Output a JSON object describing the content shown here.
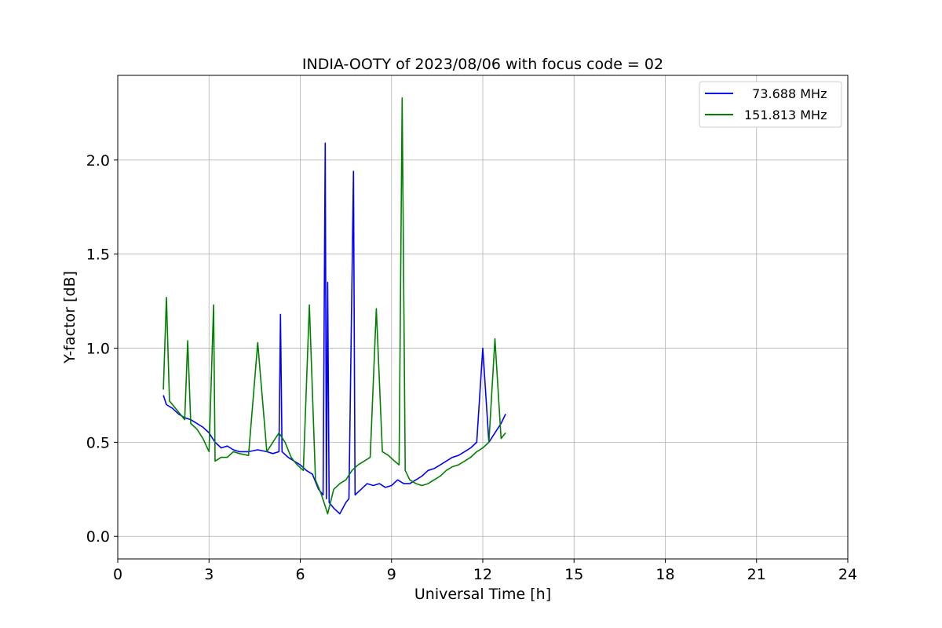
{
  "chart_data": {
    "type": "line",
    "title": "INDIA-OOTY of 2023/08/06 with focus code = 02",
    "xlabel": "Universal Time [h]",
    "ylabel": "Y-factor [dB]",
    "xlim": [
      0,
      24
    ],
    "ylim": [
      -0.12,
      2.45
    ],
    "xticks": [
      0,
      3,
      6,
      9,
      12,
      15,
      18,
      21,
      24
    ],
    "xtick_labels": [
      "0",
      "3",
      "6",
      "9",
      "12",
      "15",
      "18",
      "21",
      "24"
    ],
    "yticks": [
      0.0,
      0.5,
      1.0,
      1.5,
      2.0
    ],
    "ytick_labels": [
      "0.0",
      "0.5",
      "1.0",
      "1.5",
      "2.0"
    ],
    "grid": true,
    "legend_position": "top-right",
    "series": [
      {
        "name": "  73.688 MHz",
        "color": "#0000ff",
        "x": [
          1.5,
          1.6,
          1.8,
          2.0,
          2.2,
          2.4,
          2.6,
          2.8,
          3.0,
          3.2,
          3.4,
          3.6,
          3.8,
          4.0,
          4.3,
          4.6,
          4.9,
          5.1,
          5.3,
          5.35,
          5.4,
          5.6,
          5.8,
          6.0,
          6.2,
          6.4,
          6.6,
          6.75,
          6.82,
          6.86,
          6.9,
          6.95,
          7.1,
          7.3,
          7.5,
          7.6,
          7.75,
          7.8,
          8.0,
          8.2,
          8.4,
          8.6,
          8.8,
          9.0,
          9.2,
          9.4,
          9.6,
          9.8,
          10.0,
          10.2,
          10.4,
          10.6,
          10.8,
          11.0,
          11.2,
          11.4,
          11.6,
          11.8,
          12.0,
          12.2,
          12.4,
          12.6,
          12.75
        ],
        "y": [
          0.75,
          0.7,
          0.68,
          0.65,
          0.63,
          0.62,
          0.6,
          0.58,
          0.55,
          0.5,
          0.47,
          0.48,
          0.46,
          0.45,
          0.45,
          0.46,
          0.45,
          0.44,
          0.45,
          1.18,
          0.45,
          0.42,
          0.4,
          0.38,
          0.35,
          0.33,
          0.25,
          0.22,
          2.09,
          0.2,
          1.35,
          0.18,
          0.15,
          0.12,
          0.18,
          0.2,
          1.94,
          0.22,
          0.25,
          0.28,
          0.27,
          0.28,
          0.26,
          0.27,
          0.3,
          0.28,
          0.28,
          0.3,
          0.32,
          0.35,
          0.36,
          0.38,
          0.4,
          0.42,
          0.43,
          0.45,
          0.47,
          0.5,
          1.0,
          0.5,
          0.55,
          0.6,
          0.65
        ]
      },
      {
        "name": "151.813 MHz",
        "color": "#008000",
        "x": [
          1.5,
          1.6,
          1.7,
          1.8,
          2.0,
          2.2,
          2.3,
          2.4,
          2.6,
          2.8,
          3.0,
          3.15,
          3.2,
          3.4,
          3.6,
          3.8,
          4.0,
          4.3,
          4.6,
          4.9,
          5.1,
          5.3,
          5.5,
          5.7,
          5.9,
          6.1,
          6.3,
          6.5,
          6.7,
          6.9,
          7.1,
          7.3,
          7.5,
          7.7,
          7.9,
          8.1,
          8.3,
          8.5,
          8.7,
          8.9,
          9.1,
          9.25,
          9.35,
          9.45,
          9.6,
          9.8,
          10.0,
          10.2,
          10.4,
          10.6,
          10.8,
          11.0,
          11.2,
          11.4,
          11.6,
          11.8,
          12.0,
          12.2,
          12.4,
          12.6,
          12.75
        ],
        "y": [
          0.78,
          1.27,
          0.72,
          0.7,
          0.66,
          0.62,
          1.04,
          0.6,
          0.57,
          0.52,
          0.45,
          1.23,
          0.4,
          0.42,
          0.42,
          0.45,
          0.44,
          0.43,
          1.03,
          0.45,
          0.5,
          0.55,
          0.5,
          0.42,
          0.38,
          0.35,
          1.23,
          0.3,
          0.22,
          0.12,
          0.25,
          0.28,
          0.3,
          0.35,
          0.38,
          0.4,
          0.42,
          1.21,
          0.45,
          0.43,
          0.4,
          0.38,
          2.33,
          0.35,
          0.3,
          0.28,
          0.27,
          0.28,
          0.3,
          0.32,
          0.35,
          0.37,
          0.38,
          0.4,
          0.42,
          0.45,
          0.47,
          0.5,
          1.05,
          0.52,
          0.55
        ]
      }
    ]
  }
}
